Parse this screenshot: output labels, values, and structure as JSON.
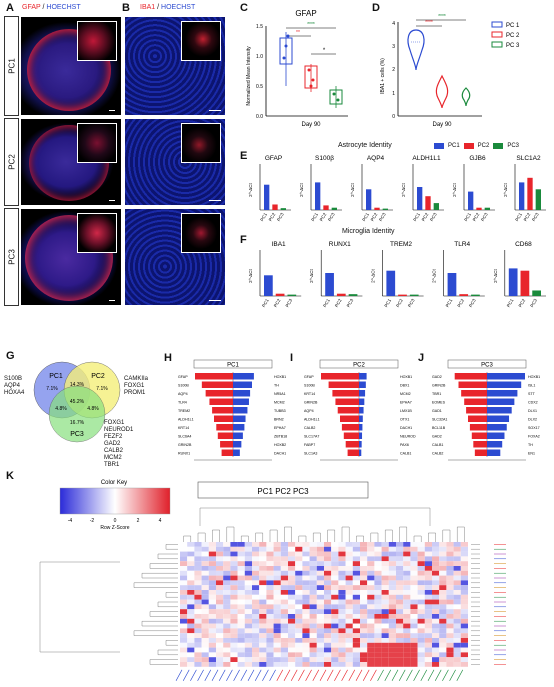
{
  "panel_letters": {
    "A": "A",
    "B": "B",
    "C": "C",
    "D": "D",
    "E": "E",
    "F": "F",
    "G": "G",
    "H": "H",
    "I": "I",
    "J": "J",
    "K": "K"
  },
  "panelA": {
    "title_a": "GFAP",
    "title_sep": " / ",
    "title_b": "HOECHST"
  },
  "panelB": {
    "title_a": "IBA1",
    "title_sep": " / ",
    "title_b": "HOECHST"
  },
  "rows": [
    "PC1",
    "PC2",
    "PC3"
  ],
  "colors": {
    "pc1": "#2c4bd1",
    "pc2": "#e8252b",
    "pc3": "#1a8a3c",
    "heat_low": "#2b2bd9",
    "heat_high": "#e0202a"
  },
  "panelC": {
    "title": "GFAP",
    "ylabel": "Normalized Mean Intensity",
    "xlabel": "Day 90",
    "yticks": [
      "0.0",
      "0.5",
      "1.0",
      "1.5"
    ],
    "sig": [
      "****",
      "**",
      "*"
    ]
  },
  "panelD": {
    "ylabel": "IBA1 + cells (%)",
    "xlabel": "Day 90",
    "yticks": [
      "0",
      "1",
      "2",
      "3",
      "4"
    ],
    "sig": [
      "****",
      "****"
    ],
    "legend": [
      "PC 1",
      "PC 2",
      "PC 3"
    ]
  },
  "panelE": {
    "title": "Astrocyte Identity",
    "legend": [
      "PC1",
      "PC2",
      "PC3"
    ],
    "genes": [
      "GFAP",
      "S100β",
      "AQP4",
      "ALDH1L1",
      "GJB6",
      "SLC1A2"
    ],
    "ylabel": "2^-ΔCt",
    "xcats": [
      "PC1",
      "PC2",
      "PC3"
    ]
  },
  "panelF": {
    "title": "Microglia Identity",
    "genes": [
      "IBA1",
      "RUNX1",
      "TREM2",
      "TLR4",
      "CD68"
    ],
    "ylabel": "2^-ΔCt",
    "xcats": [
      "PC1",
      "PC2",
      "PC3"
    ]
  },
  "panelG": {
    "sets": [
      "PC1",
      "PC2",
      "PC3"
    ],
    "pcts": [
      "7.1%",
      "14.3%",
      "7.1%",
      "45.2%",
      "4.8%",
      "4.8%",
      "16.7%"
    ],
    "left_genes": [
      "S100B",
      "AQP4",
      "HOXA4"
    ],
    "right_genes": [
      "CAMKIIa",
      "FOXG1",
      "PROM1"
    ],
    "bottom_genes": [
      "FOXG1",
      "NEUROD1",
      "FEZF2",
      "GAD2",
      "CALB2",
      "MCM2",
      "TBR1"
    ]
  },
  "panelH": {
    "title": "PC1",
    "left": [
      "GFAP",
      "S100B",
      "AQP4",
      "TLR4",
      "TREM2",
      "ALDH1L1",
      "KRT14",
      "SLC6A4",
      "GRIN2B",
      "RUNX1"
    ],
    "right": [
      "HOXB1",
      "TH",
      "NR5A1",
      "MCM2",
      "TUBB3",
      "BRN2",
      "EPHA7",
      "ZBTB18",
      "HOXB2",
      "DACH1"
    ],
    "up": [
      1.0,
      0.82,
      0.72,
      0.62,
      0.55,
      0.5,
      0.44,
      0.4,
      0.34,
      0.3
    ],
    "down": [
      0.55,
      0.5,
      0.45,
      0.42,
      0.38,
      0.33,
      0.3,
      0.26,
      0.22,
      0.18
    ]
  },
  "panelI": {
    "title": "PC2",
    "left": [
      "GFAP",
      "S100B",
      "KRT14",
      "GRIN2B",
      "AQP4",
      "ALDH1L1",
      "CALB2",
      "SLC17A7",
      "FABP7",
      "SLC1A3"
    ],
    "right": [
      "HOXB1",
      "DBX1",
      "MCM2",
      "EPHA7",
      "LMX1B",
      "OTX1",
      "DACH1",
      "NEUROD1",
      "PAX6",
      "CALB1"
    ],
    "up": [
      1.0,
      0.8,
      0.7,
      0.62,
      0.56,
      0.5,
      0.45,
      0.4,
      0.35,
      0.3
    ],
    "down": [
      0.2,
      0.18,
      0.16,
      0.14,
      0.12,
      0.1,
      0.09,
      0.08,
      0.07,
      0.06
    ]
  },
  "panelJ": {
    "title": "PC3",
    "left": [
      "GAD2",
      "GRIN2B",
      "TBR1",
      "EOMES",
      "GAD1",
      "SLC32A1",
      "BCL11B",
      "GAD2",
      "CALB1",
      "CALB2"
    ],
    "right": [
      "HOXB1",
      "ISL1",
      "STT",
      "CDX2",
      "DLX1",
      "DLX2",
      "SOX17",
      "FOXA2",
      "TH",
      "EN1"
    ],
    "up": [
      0.85,
      0.75,
      0.68,
      0.6,
      0.55,
      0.5,
      0.45,
      0.4,
      0.36,
      0.32
    ],
    "down": [
      1.0,
      0.9,
      0.8,
      0.72,
      0.65,
      0.58,
      0.52,
      0.46,
      0.4,
      0.35
    ]
  },
  "panelK": {
    "header": "PC1 PC2 PC3",
    "key_title": "Color Key",
    "key_xlabel": "Row Z-Score",
    "key_ticks": [
      "-4",
      "-2",
      "0",
      "2",
      "4"
    ]
  }
}
